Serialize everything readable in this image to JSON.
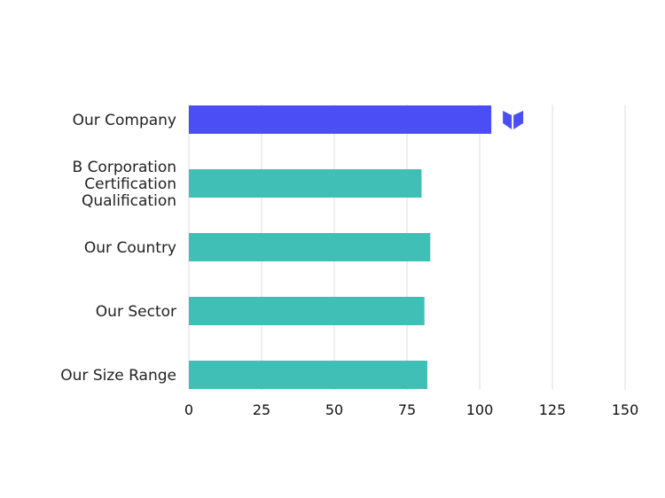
{
  "chart_data": {
    "type": "bar",
    "orientation": "horizontal",
    "categories": [
      [
        "Our Company"
      ],
      [
        "B Corporation",
        "Certification",
        "Qualification"
      ],
      [
        "Our Country"
      ],
      [
        "Our Sector"
      ],
      [
        "Our Size Range"
      ]
    ],
    "values": [
      104,
      80,
      83,
      81,
      82
    ],
    "bar_colors": [
      "#4B4EF5",
      "#3FBFB5",
      "#3FBFB5",
      "#3FBFB5",
      "#3FBFB5"
    ],
    "x_ticks": [
      0,
      25,
      50,
      75,
      100,
      125,
      150
    ],
    "xlim": [
      0,
      150
    ],
    "grid": true,
    "marker": {
      "icon": "b-logo-icon",
      "category_index": 0,
      "color": "#4B4EF5"
    },
    "title": "",
    "xlabel": "",
    "ylabel": ""
  }
}
